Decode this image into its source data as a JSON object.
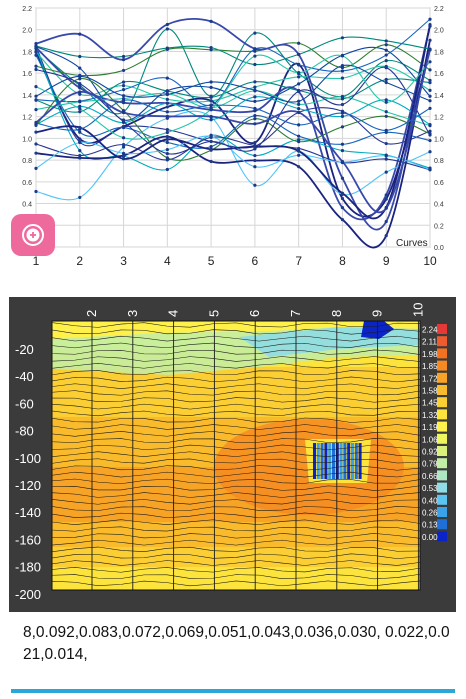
{
  "curves_chart": {
    "x_ticks": [
      "1",
      "2",
      "3",
      "4",
      "5",
      "6",
      "7",
      "8",
      "9",
      "10"
    ],
    "y_ticks": [
      "0.0",
      "0.2",
      "0.4",
      "0.6",
      "0.8",
      "1.0",
      "1.2",
      "1.4",
      "1.6",
      "1.8",
      "2.0",
      "2.2"
    ],
    "legend_label": "Curves",
    "zoom_button_icon": "zoom-plus-icon",
    "line_colors": [
      "#1a237e",
      "#283593",
      "#1565c0",
      "#00897b",
      "#26c6a8",
      "#3949ab",
      "#0d47a1",
      "#00acc1",
      "#2e7d32",
      "#4fc3f7"
    ],
    "marker_color": "#1a3a8a"
  },
  "contour_chart": {
    "x_ticks": [
      "2",
      "3",
      "4",
      "5",
      "6",
      "7",
      "8",
      "9",
      "10"
    ],
    "y_ticks": [
      "-20",
      "-40",
      "-60",
      "-80",
      "-100",
      "-120",
      "-140",
      "-160",
      "-180",
      "-200"
    ],
    "scale_labels": [
      "2.24",
      "2.11",
      "1.98",
      "1.85",
      "1.72",
      "1.58",
      "1.45",
      "1.32",
      "1.19",
      "1.06",
      "0.92",
      "0.79",
      "0.66",
      "0.53",
      "0.40",
      "0.26",
      "0.13",
      "0.00"
    ],
    "scale_colors": [
      "#e53935",
      "#ef5b2f",
      "#f4711f",
      "#f58a22",
      "#f7a326",
      "#f9bb2c",
      "#fbce33",
      "#fde43c",
      "#fff14a",
      "#eef55d",
      "#d9f07a",
      "#c2eda6",
      "#aee6c4",
      "#8fdbe6",
      "#5cc4f0",
      "#3aa2e8",
      "#1e6fd8",
      "#0b24c8"
    ]
  },
  "footer": {
    "text": "8,0.092,0.083,0.072,0.069,0.051,0.043,0.036,0.030, 0.022,0.021,0.014,"
  }
}
